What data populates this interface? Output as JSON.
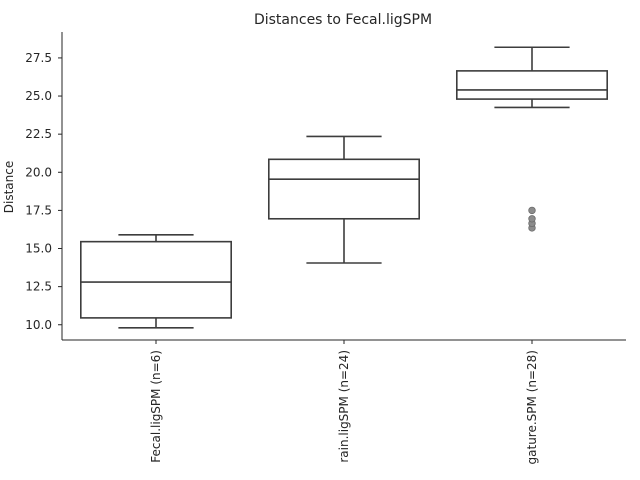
{
  "chart_data": {
    "type": "box",
    "title": "Distances to Fecal.ligSPM",
    "xlabel": "",
    "ylabel": "Distance",
    "ylim": [
      9.0,
      29.2
    ],
    "yticks": [
      "10.0",
      "12.5",
      "15.0",
      "17.5",
      "20.0",
      "22.5",
      "25.0",
      "27.5"
    ],
    "grid": false,
    "categories": [
      "Fecal.ligSPM (n=6)",
      "rain.ligSPM (n=24)",
      "gature.SPM (n=28)"
    ],
    "boxes": [
      {
        "whisker_low": 9.8,
        "q1": 10.45,
        "median": 12.8,
        "q3": 15.45,
        "whisker_high": 15.9,
        "outliers": []
      },
      {
        "whisker_low": 14.05,
        "q1": 16.95,
        "median": 19.55,
        "q3": 20.85,
        "whisker_high": 22.35,
        "outliers": []
      },
      {
        "whisker_low": 24.25,
        "q1": 24.8,
        "median": 25.4,
        "q3": 26.65,
        "whisker_high": 28.2,
        "outliers": [
          16.35,
          16.65,
          16.95,
          17.5
        ]
      }
    ]
  }
}
